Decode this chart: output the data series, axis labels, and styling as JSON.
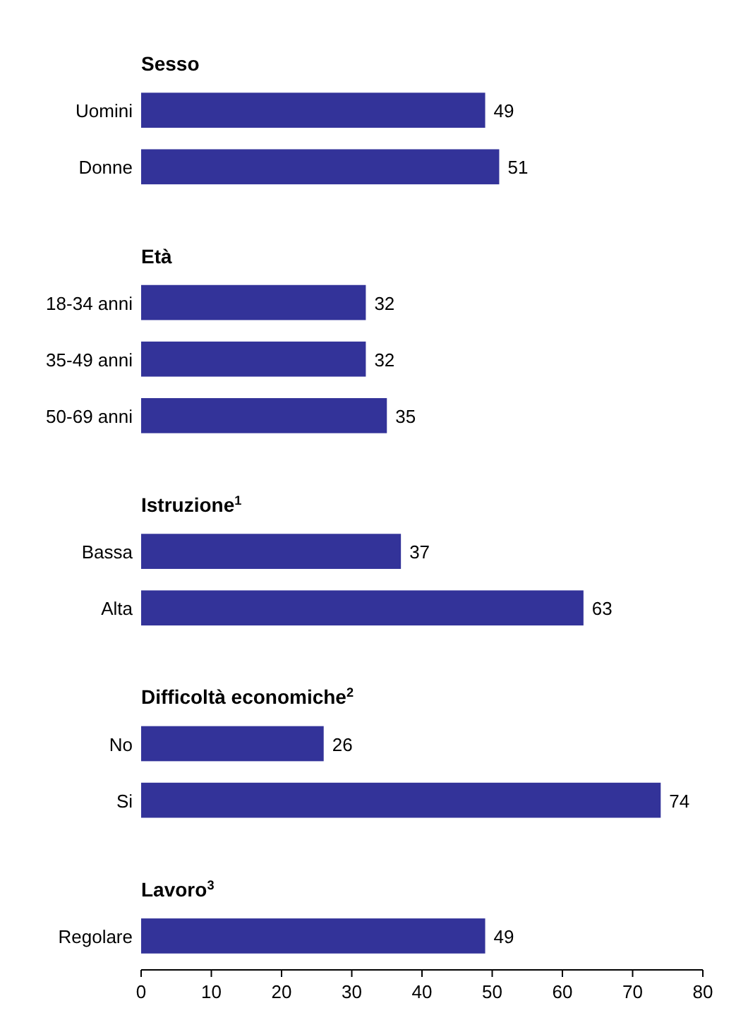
{
  "chart_data": {
    "type": "bar",
    "orientation": "horizontal",
    "categories": [
      "Sesso",
      "Uomini",
      "Donne",
      "Età",
      "18-34 anni",
      "35-49 anni",
      "50-69 anni",
      "Istruzione$^{1}$",
      "Bassa",
      "Alta",
      "Difficoltà economiche$^{2}$",
      "No",
      "Si",
      "Lavoro$^{3}$",
      "Regolare"
    ],
    "values": [
      null,
      49,
      51,
      null,
      32,
      32,
      35,
      null,
      37,
      63,
      null,
      26,
      74,
      null,
      49
    ],
    "color": "#333399",
    "data_labels": true,
    "xlim": [
      0,
      80
    ],
    "xticks": [
      0,
      10,
      20,
      30,
      40,
      50,
      60,
      70,
      80
    ],
    "grid": false
  }
}
